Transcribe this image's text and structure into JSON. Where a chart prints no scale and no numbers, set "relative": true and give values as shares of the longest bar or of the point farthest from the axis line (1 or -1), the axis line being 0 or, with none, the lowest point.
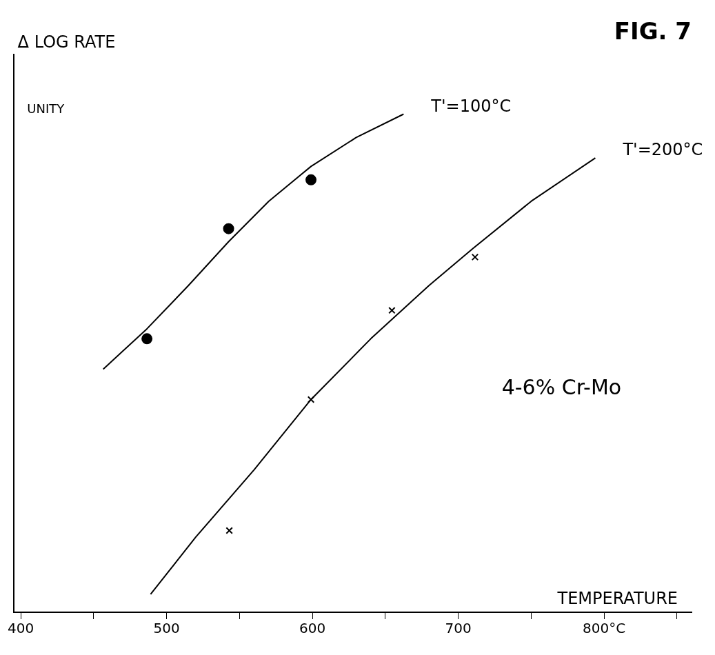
{
  "chart_data": {
    "type": "line",
    "title": "FIG. 7",
    "ylabel": "Δ LOG RATE",
    "xlabel": "TEMPERATURE",
    "relative": true,
    "grid": false,
    "legend": false,
    "xlim": [
      395,
      860
    ],
    "xticks": [
      400,
      {
        "value": 450,
        "label": null
      },
      500,
      {
        "value": 550,
        "label": null
      },
      600,
      {
        "value": 650,
        "label": null
      },
      700,
      {
        "value": 750,
        "label": null
      },
      {
        "value": 800,
        "label": "800°C"
      },
      {
        "value": 850,
        "label": null
      }
    ],
    "annotations": [
      "UNITY",
      "4-6% Cr-Mo"
    ],
    "series": [
      {
        "name": "T'=100°C",
        "marker": "none",
        "color": "#000000",
        "x": [
          456.5,
          486.5,
          515,
          542.5,
          570,
          599,
          630,
          662.5
        ],
        "values": [
          0.488,
          0.569,
          0.656,
          0.744,
          0.825,
          0.895,
          0.953,
          1.0
        ]
      },
      {
        "type": "scatter",
        "marker": "circle",
        "color": "#000000",
        "x": [
          486.5,
          542.5,
          599
        ],
        "values": [
          0.549,
          0.77,
          0.868
        ]
      },
      {
        "name": "T'=200°C",
        "marker": "none",
        "color": "#000000",
        "x": [
          489,
          520,
          560,
          599,
          640,
          680,
          710,
          750,
          794
        ],
        "values": [
          0.036,
          0.151,
          0.286,
          0.427,
          0.549,
          0.656,
          0.73,
          0.825,
          0.912
        ]
      },
      {
        "type": "scatter",
        "marker": "cross",
        "color": "#000000",
        "x": [
          543,
          599,
          654.5,
          711.5
        ],
        "values": [
          0.164,
          0.427,
          0.606,
          0.713
        ]
      }
    ]
  }
}
